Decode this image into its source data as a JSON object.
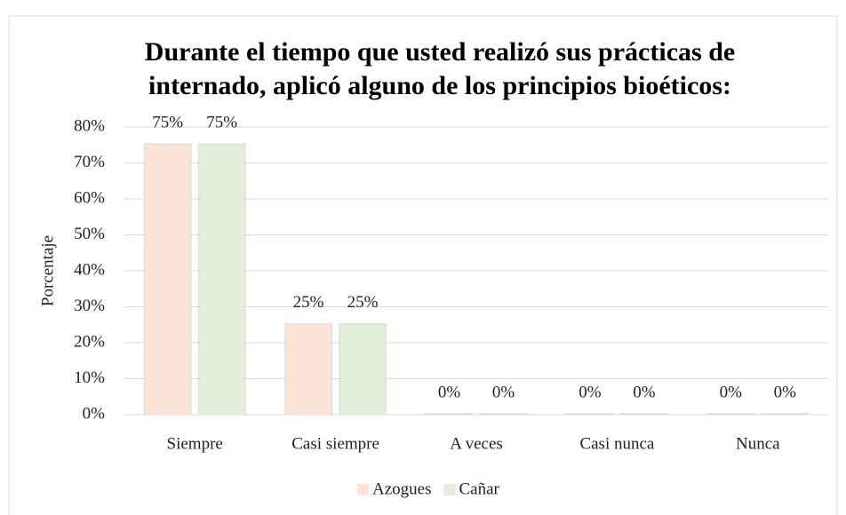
{
  "chart_data": {
    "type": "bar",
    "title": [
      "Durante el tiempo que usted realizó sus prácticas de",
      "internado, aplicó alguno de los principios bioéticos:"
    ],
    "y_label": "Porcentaje",
    "categories": [
      "Siempre",
      "Casi siempre",
      "A veces",
      "Casi nunca",
      "Nunca"
    ],
    "series": [
      {
        "name": "Azogues",
        "color": "#fbe3d6",
        "values": [
          75,
          25,
          0,
          0,
          0
        ],
        "value_labels": [
          "75%",
          "25%",
          "0%",
          "0%",
          "0%"
        ]
      },
      {
        "name": "Cañar",
        "color": "#e2efd9",
        "values": [
          75,
          25,
          0,
          0,
          0
        ],
        "value_labels": [
          "75%",
          "25%",
          "0%",
          "0%",
          "0%"
        ]
      }
    ],
    "ylim": [
      0,
      80
    ],
    "yticks": [
      {
        "value": 0,
        "label": "0%"
      },
      {
        "value": 10,
        "label": "10%"
      },
      {
        "value": 20,
        "label": "20%"
      },
      {
        "value": 30,
        "label": "30%"
      },
      {
        "value": 40,
        "label": "40%"
      },
      {
        "value": 50,
        "label": "50%"
      },
      {
        "value": 60,
        "label": "60%"
      },
      {
        "value": 70,
        "label": "70%"
      },
      {
        "value": 80,
        "label": "80%"
      }
    ],
    "grid": true,
    "legend": "bottom"
  }
}
